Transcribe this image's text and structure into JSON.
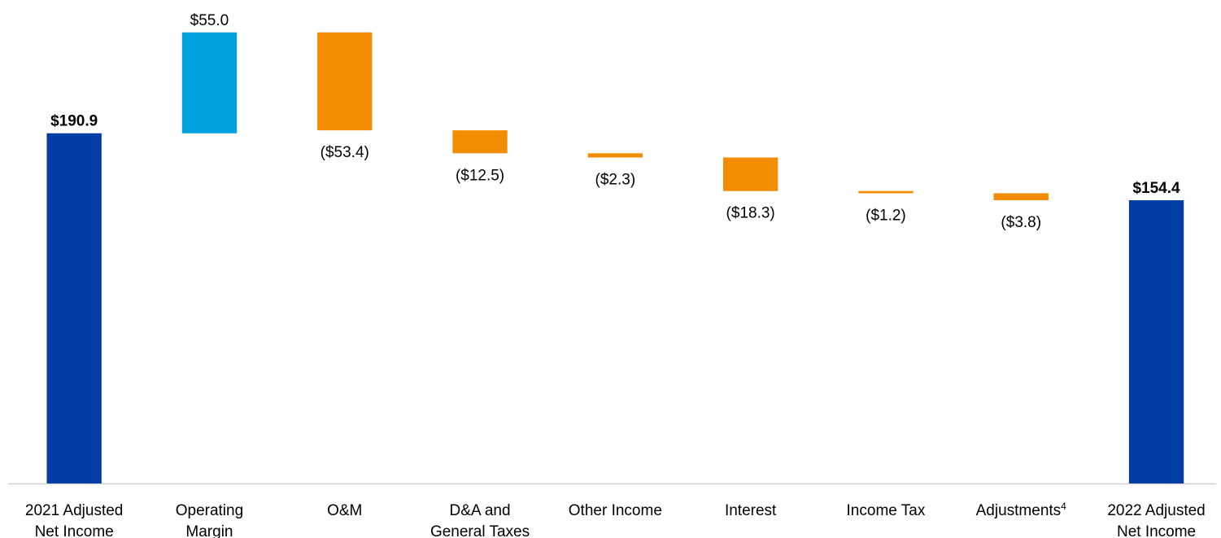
{
  "chart_data": {
    "type": "waterfall",
    "categories": [
      [
        "2021 Adjusted",
        "Net Income"
      ],
      [
        "Operating",
        "Margin"
      ],
      [
        "O&M"
      ],
      [
        "D&A and",
        "General Taxes"
      ],
      [
        "Other Income"
      ],
      [
        "Interest"
      ],
      [
        "Income Tax"
      ],
      [
        "Adjustments"
      ],
      [
        "2022 Adjusted",
        "Net Income"
      ]
    ],
    "category_superscripts": [
      null,
      null,
      null,
      null,
      null,
      null,
      null,
      "4",
      null
    ],
    "measure": [
      "total",
      "relative",
      "relative",
      "relative",
      "relative",
      "relative",
      "relative",
      "relative",
      "total"
    ],
    "values": [
      190.9,
      55.0,
      -53.4,
      -12.5,
      -2.3,
      -18.3,
      -1.2,
      -3.8,
      154.4
    ],
    "value_labels": [
      "$190.9",
      "$55.0",
      "($53.4)",
      "($12.5)",
      "($2.3)",
      "($18.3)",
      "($1.2)",
      "($3.8)",
      "$154.4"
    ],
    "colors": {
      "total": "#003da5",
      "increase": "#00a3e0",
      "decrease": "#f28c00"
    },
    "ylim": [
      0,
      260
    ]
  }
}
